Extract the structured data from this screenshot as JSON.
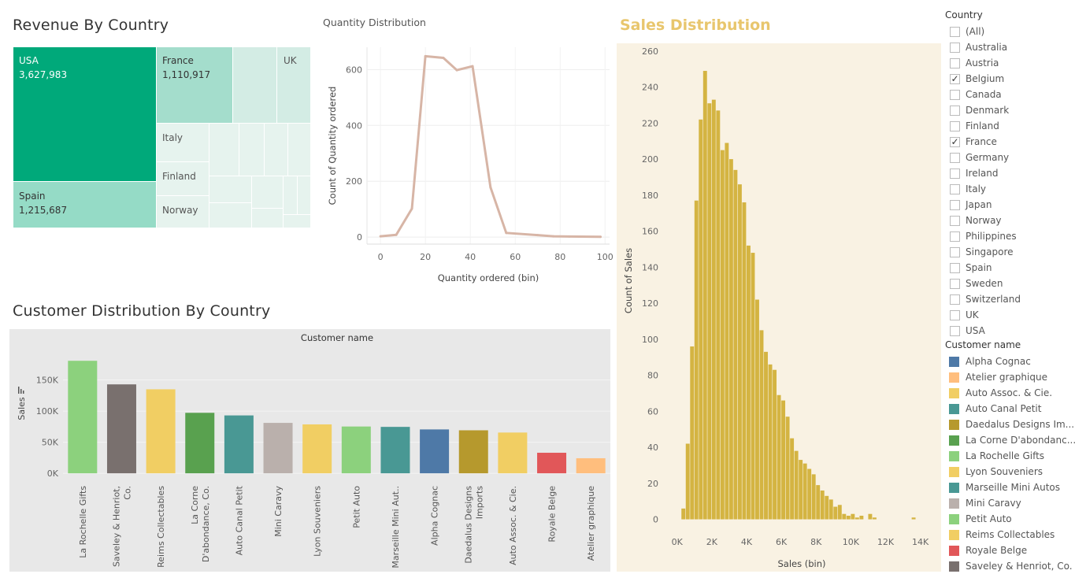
{
  "titles": {
    "revenue": "Revenue By Country",
    "quantity": "Quantity Distribution",
    "sales": "Sales Distribution",
    "customer": "Customer Distribution By Country"
  },
  "treemap": {
    "labeled_cells": [
      {
        "country": "USA",
        "value": "3,627,983",
        "color": "#00a97a"
      },
      {
        "country": "Spain",
        "value": "1,215,687",
        "color": "#95dbc6"
      },
      {
        "country": "France",
        "value": "1,110,917",
        "color": "#a4ddcc"
      },
      {
        "country": "UK",
        "value": "",
        "color": "#d3ece4"
      },
      {
        "country": "Italy",
        "value": "",
        "color": "#e6f3ee"
      },
      {
        "country": "Finland",
        "value": "",
        "color": "#e6f3ee"
      },
      {
        "country": "Norway",
        "value": "",
        "color": "#e6f3ee"
      }
    ]
  },
  "filters": {
    "country_header": "Country",
    "countries": [
      {
        "label": "(All)",
        "checked": false
      },
      {
        "label": "Australia",
        "checked": false
      },
      {
        "label": "Austria",
        "checked": false
      },
      {
        "label": "Belgium",
        "checked": true
      },
      {
        "label": "Canada",
        "checked": false
      },
      {
        "label": "Denmark",
        "checked": false
      },
      {
        "label": "Finland",
        "checked": false
      },
      {
        "label": "France",
        "checked": true
      },
      {
        "label": "Germany",
        "checked": false
      },
      {
        "label": "Ireland",
        "checked": false
      },
      {
        "label": "Italy",
        "checked": false
      },
      {
        "label": "Japan",
        "checked": false
      },
      {
        "label": "Norway",
        "checked": false
      },
      {
        "label": "Philippines",
        "checked": false
      },
      {
        "label": "Singapore",
        "checked": false
      },
      {
        "label": "Spain",
        "checked": false
      },
      {
        "label": "Sweden",
        "checked": false
      },
      {
        "label": "Switzerland",
        "checked": false
      },
      {
        "label": "UK",
        "checked": false
      },
      {
        "label": "USA",
        "checked": false
      }
    ],
    "check_glyph": "✓"
  },
  "legend": {
    "header": "Customer name",
    "items": [
      {
        "label": "Alpha Cognac",
        "color": "#4e79a7"
      },
      {
        "label": "Atelier graphique",
        "color": "#ffbe7d"
      },
      {
        "label": "Auto Assoc. & Cie.",
        "color": "#f1ce63"
      },
      {
        "label": "Auto Canal Petit",
        "color": "#499894"
      },
      {
        "label": "Daedalus Designs Im...",
        "color": "#b6992d"
      },
      {
        "label": "La Corne D'abondanc...",
        "color": "#59a14f"
      },
      {
        "label": "La Rochelle Gifts",
        "color": "#8cd17d"
      },
      {
        "label": "Lyon Souveniers",
        "color": "#f1ce63"
      },
      {
        "label": "Marseille Mini Autos",
        "color": "#499894"
      },
      {
        "label": "Mini Caravy",
        "color": "#bab0ac"
      },
      {
        "label": "Petit Auto",
        "color": "#8cd17d"
      },
      {
        "label": "Reims Collectables",
        "color": "#f1ce63"
      },
      {
        "label": "Royale Belge",
        "color": "#e15759"
      },
      {
        "label": "Saveley & Henriot, Co.",
        "color": "#79706e"
      }
    ]
  },
  "chart_data": [
    {
      "type": "line",
      "title": "Quantity Distribution",
      "xlabel": "Quantity ordered (bin)",
      "ylabel": "Count of Quantity ordered",
      "x": [
        0,
        7,
        14,
        20,
        28,
        34,
        41,
        49,
        56,
        70,
        77,
        84,
        98
      ],
      "y": [
        3,
        8,
        102,
        648,
        642,
        598,
        612,
        178,
        15,
        7,
        3,
        2,
        1
      ],
      "xlim": [
        -6,
        102
      ],
      "ylim": [
        -25,
        680
      ],
      "xticks": [
        "0",
        "20",
        "40",
        "60",
        "80",
        "100"
      ],
      "yticks": [
        "0",
        "200",
        "400",
        "600"
      ],
      "color": "#d7b5a6",
      "grid": true
    },
    {
      "type": "bar",
      "title": "Sales Distribution",
      "xlabel": "Sales (bin)",
      "ylabel": "Count of Sales",
      "bin_width": 250,
      "x_start": 250,
      "values": [
        6,
        42,
        96,
        177,
        222,
        249,
        231,
        233,
        227,
        205,
        209,
        200,
        194,
        186,
        176,
        152,
        148,
        122,
        105,
        93,
        86,
        83,
        69,
        66,
        57,
        45,
        38,
        33,
        31,
        28,
        25,
        19,
        16,
        13,
        11,
        7,
        8,
        3,
        2,
        3,
        1,
        2,
        0,
        3,
        1,
        0,
        0,
        0,
        0,
        0,
        0,
        0,
        0,
        1
      ],
      "xlim": [
        -350,
        14650
      ],
      "ylim": [
        -5,
        263
      ],
      "xticks": [
        "0K",
        "2K",
        "4K",
        "6K",
        "8K",
        "10K",
        "12K",
        "14K"
      ],
      "yticks": [
        "0",
        "20",
        "40",
        "60",
        "80",
        "100",
        "120",
        "140",
        "160",
        "180",
        "200",
        "220",
        "240",
        "260"
      ],
      "color": "#d4b442",
      "background": "#f9f2e3"
    },
    {
      "type": "bar",
      "title": "Customer Distribution By Country",
      "header": "Customer name",
      "ylabel": "Sales",
      "categories": [
        "La Rochelle Gifts",
        "Saveley & Henriot, Co.",
        "Reims Collectables",
        "La Corne D'abondance, Co.",
        "Auto Canal Petit",
        "Mini Caravy",
        "Lyon Souveniers",
        "Petit Auto",
        "Marseille Mini Aut..",
        "Alpha Cognac",
        "Daedalus Designs Imports",
        "Auto Assoc. & Cie.",
        "Royale Belge",
        "Atelier graphique"
      ],
      "tick_labels": [
        [
          "La Rochelle Gifts"
        ],
        [
          "Saveley & Henriot,",
          "Co."
        ],
        [
          "Reims Collectables"
        ],
        [
          "La Corne",
          "D'abondance, Co."
        ],
        [
          "Auto Canal Petit"
        ],
        [
          "Mini Caravy"
        ],
        [
          "Lyon Souveniers"
        ],
        [
          "Petit Auto"
        ],
        [
          "Marseille Mini Aut.."
        ],
        [
          "Alpha Cognac"
        ],
        [
          "Daedalus Designs",
          "Imports"
        ],
        [
          "Auto Assoc. & Cie."
        ],
        [
          "Royale Belge"
        ],
        [
          "Atelier graphique"
        ]
      ],
      "values": [
        180800,
        142900,
        135000,
        97200,
        93000,
        81000,
        78600,
        75200,
        74600,
        70500,
        69100,
        65500,
        33000,
        24200
      ],
      "colors": [
        "#8cd17d",
        "#79706e",
        "#f1ce63",
        "#59a14f",
        "#499894",
        "#bab0ac",
        "#f1ce63",
        "#8cd17d",
        "#499894",
        "#4e79a7",
        "#b6992d",
        "#f1ce63",
        "#e15759",
        "#ffbe7d"
      ],
      "ylim": [
        -10000,
        195000
      ],
      "yticks": [
        "0K",
        "50K",
        "100K",
        "150K"
      ],
      "background": "#e8e8e8"
    }
  ]
}
